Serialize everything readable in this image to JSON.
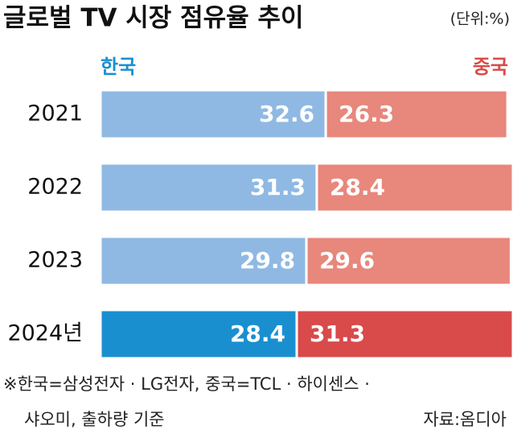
{
  "chart_data": {
    "type": "bar",
    "orientation": "horizontal",
    "stacked": true,
    "title": "글로벌 TV 시장 점유율 추이",
    "unit": "(단위:%)",
    "categories": [
      "2021",
      "2022",
      "2023",
      "2024년"
    ],
    "series": [
      {
        "name": "한국",
        "color": "#1a8fd0",
        "colors": [
          "#8fb9e3",
          "#8fb9e3",
          "#8fb9e3",
          "#1a8fd0"
        ],
        "values": [
          32.6,
          31.3,
          29.8,
          28.4
        ]
      },
      {
        "name": "중국",
        "color": "#d94a4a",
        "colors": [
          "#e8877c",
          "#e8877c",
          "#e8877c",
          "#d94a4a"
        ],
        "values": [
          26.3,
          28.4,
          29.6,
          31.3
        ]
      }
    ],
    "footnote": [
      "※한국=삼성전자 · LG전자, 중국=TCL · 하이센스 ·",
      "샤오미, 출하량 기준"
    ],
    "source": "자료:옴디아"
  }
}
